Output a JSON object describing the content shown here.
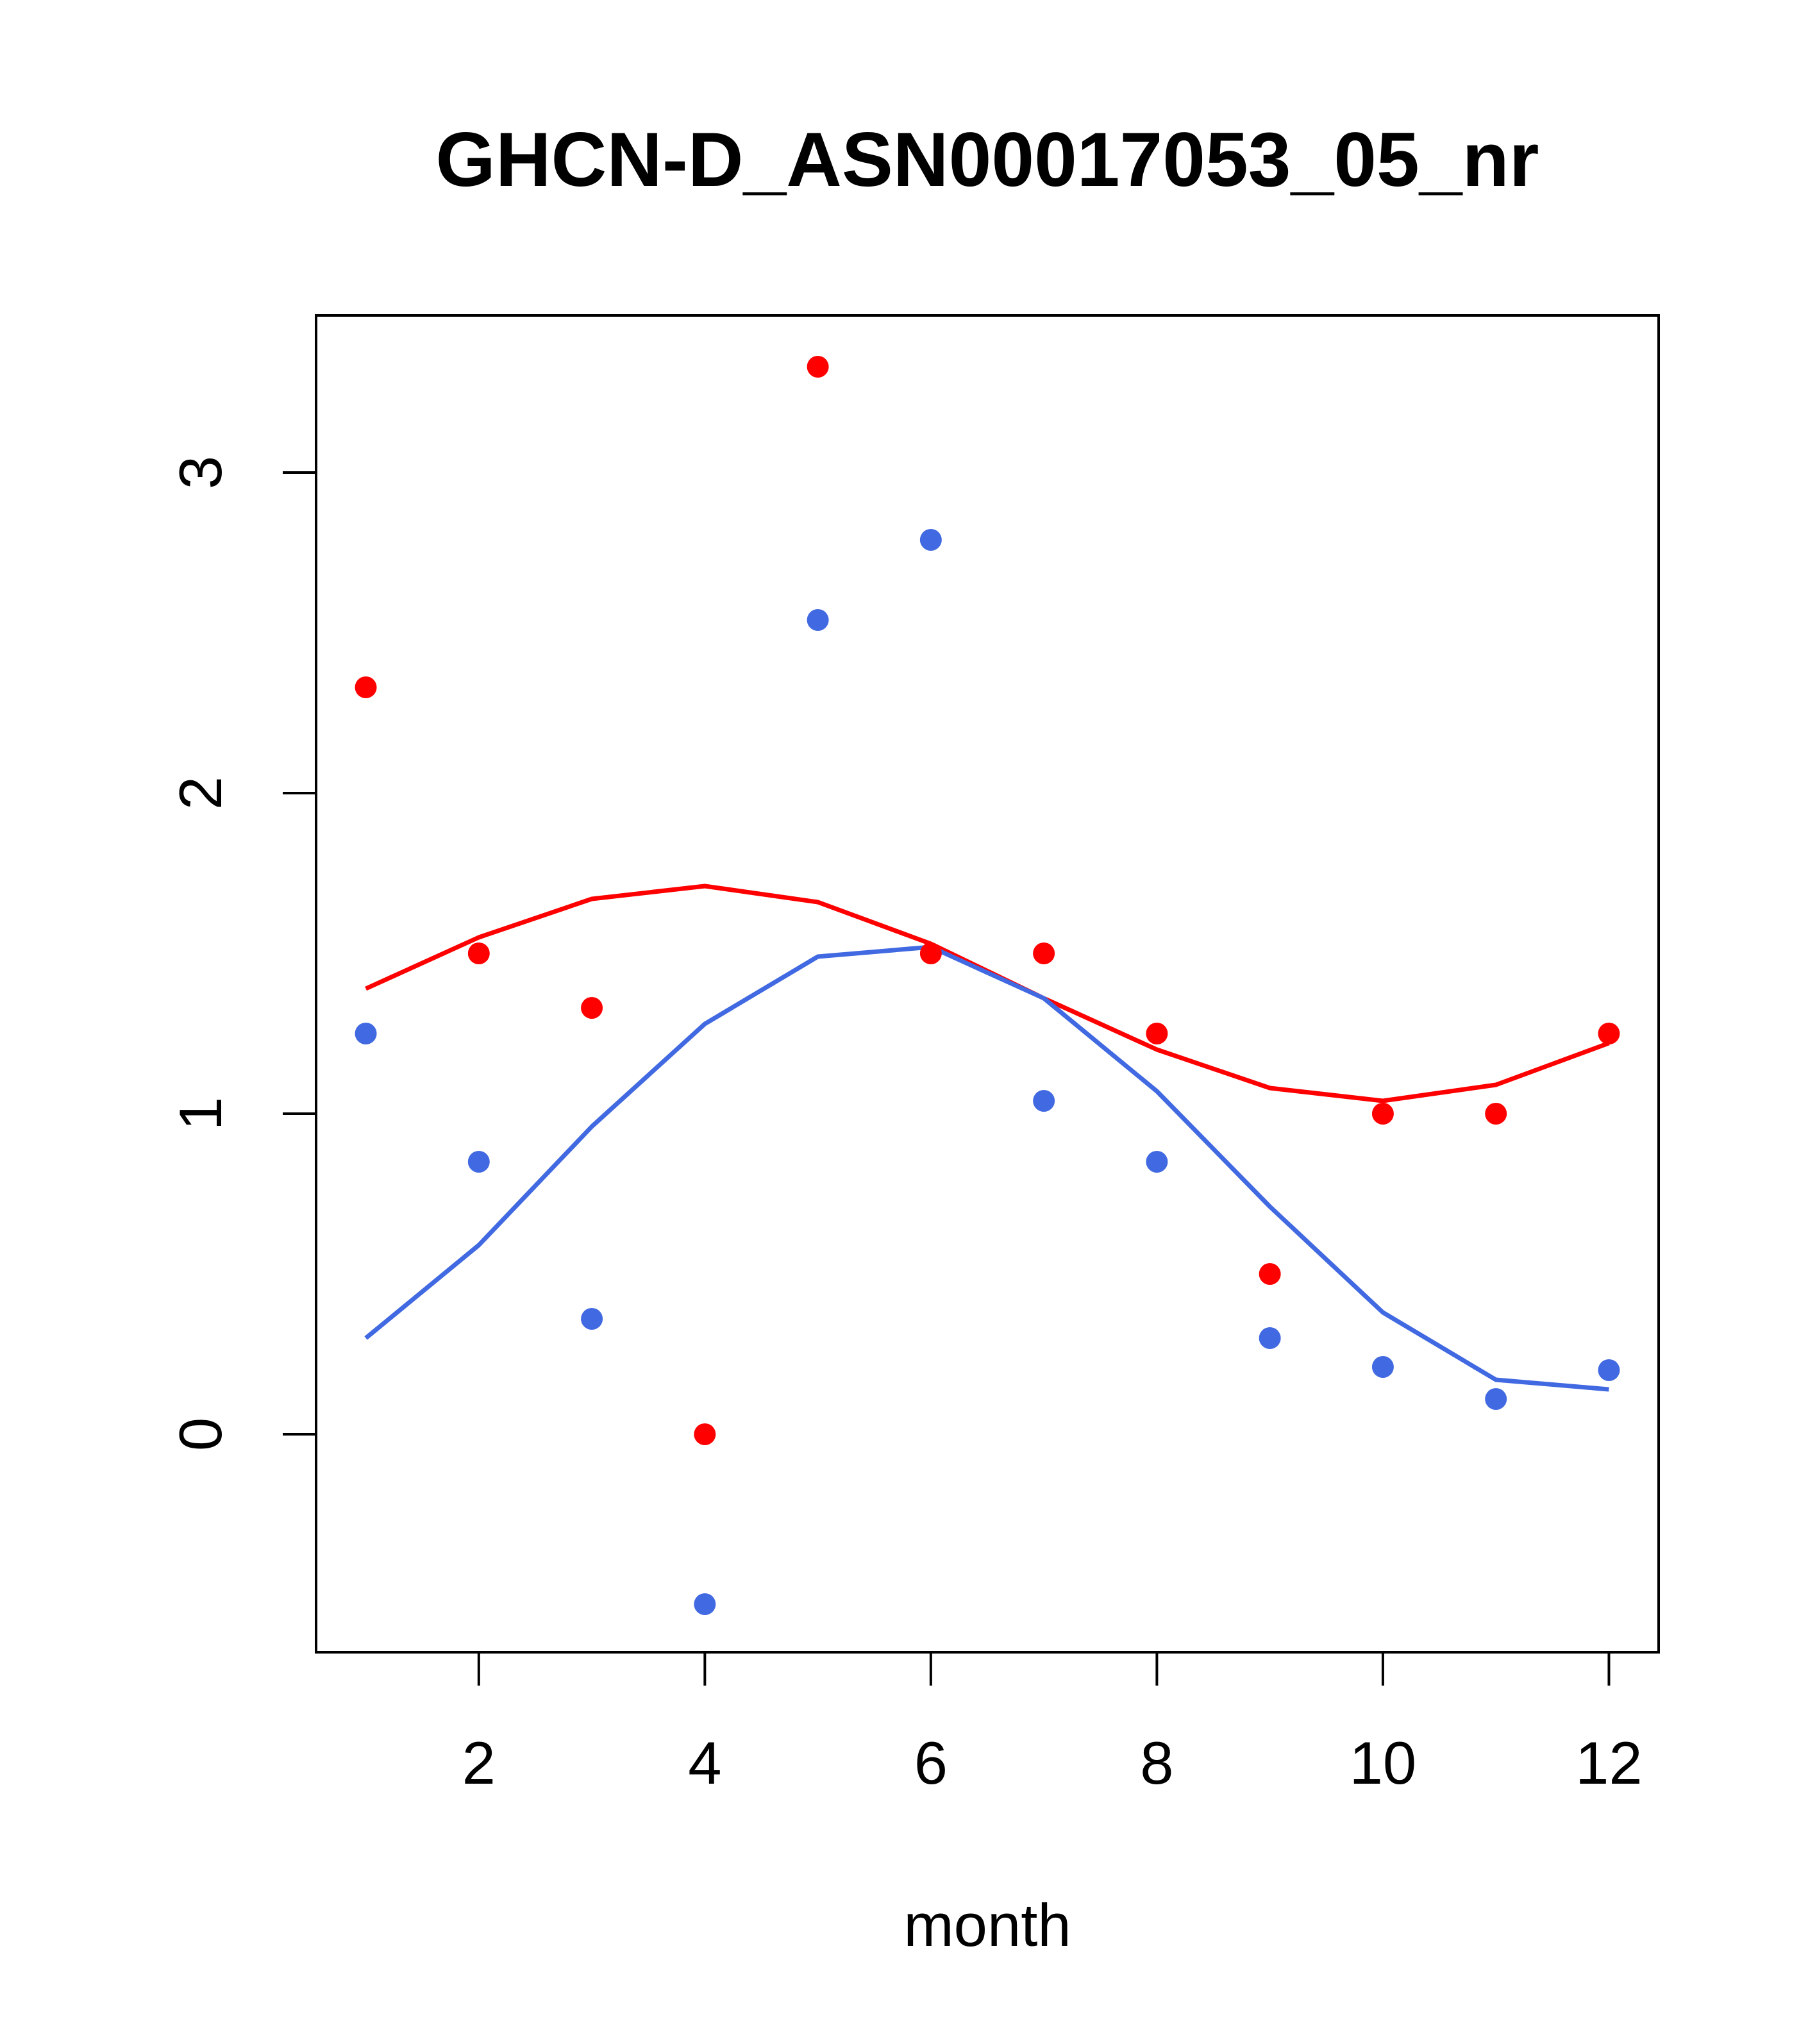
{
  "chart_data": {
    "type": "scatter",
    "title": "GHCN-D_ASN00017053_05_nr",
    "xlabel": "month",
    "ylabel": "",
    "xlim": [
      0.56,
      12.44
    ],
    "ylim": [
      -0.68,
      3.49
    ],
    "x_ticks": [
      2,
      4,
      6,
      8,
      10,
      12
    ],
    "x_tick_labels": [
      "2",
      "4",
      "6",
      "8",
      "10",
      "12"
    ],
    "y_ticks": [
      0,
      1,
      2,
      3
    ],
    "y_tick_labels": [
      "0",
      "1",
      "2",
      "3"
    ],
    "grid": false,
    "legend": "none",
    "x": [
      1,
      2,
      3,
      4,
      5,
      6,
      7,
      8,
      9,
      10,
      11,
      12
    ],
    "series": [
      {
        "color": "#ff0000",
        "points": [
          2.33,
          1.5,
          1.33,
          0.0,
          3.33,
          1.5,
          1.5,
          1.25,
          0.5,
          1.0,
          1.0,
          1.25
        ],
        "fit": [
          1.39,
          1.55,
          1.67,
          1.71,
          1.66,
          1.53,
          1.36,
          1.2,
          1.08,
          1.04,
          1.09,
          1.22
        ]
      },
      {
        "color": "#4169e1",
        "points": [
          1.25,
          0.85,
          0.36,
          -0.53,
          2.54,
          2.79,
          1.04,
          0.85,
          0.3,
          0.21,
          0.11,
          0.2
        ],
        "fit": [
          0.3,
          0.59,
          0.96,
          1.28,
          1.49,
          1.52,
          1.36,
          1.07,
          0.71,
          0.38,
          0.17,
          0.14
        ]
      }
    ]
  }
}
